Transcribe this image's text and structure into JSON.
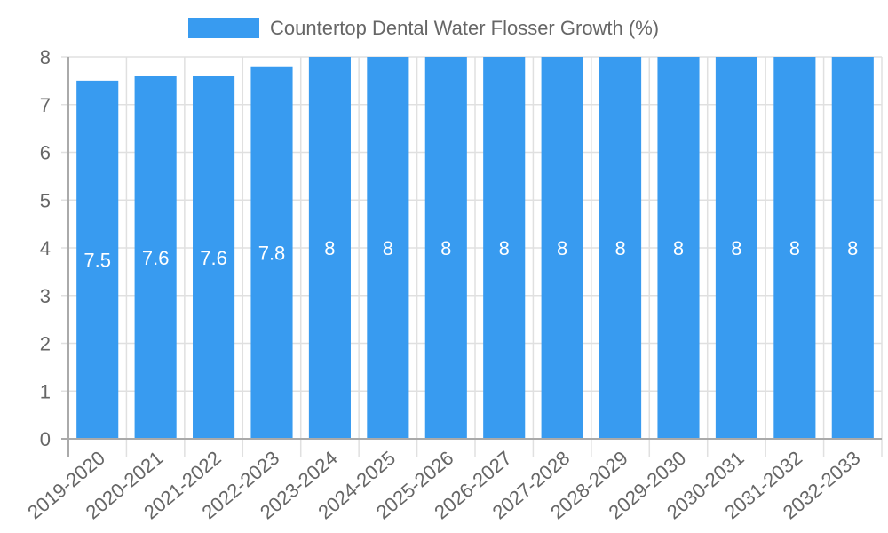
{
  "chart_data": {
    "type": "bar",
    "title": "",
    "legend": [
      {
        "label": "Countertop Dental Water Flosser Growth (%)",
        "color": "#389bf0"
      }
    ],
    "legend_position": "top",
    "categories": [
      "2019-2020",
      "2020-2021",
      "2021-2022",
      "2022-2023",
      "2023-2024",
      "2024-2025",
      "2025-2026",
      "2026-2027",
      "2027-2028",
      "2028-2029",
      "2029-2030",
      "2030-2031",
      "2031-2032",
      "2032-2033"
    ],
    "series": [
      {
        "name": "Countertop Dental Water Flosser Growth (%)",
        "values": [
          7.5,
          7.6,
          7.6,
          7.8,
          8,
          8,
          8,
          8,
          8,
          8,
          8,
          8,
          8,
          8
        ],
        "color": "#389bf0"
      }
    ],
    "value_labels": [
      "7.5",
      "7.6",
      "7.6",
      "7.8",
      "8",
      "8",
      "8",
      "8",
      "8",
      "8",
      "8",
      "8",
      "8",
      "8"
    ],
    "xlabel": "",
    "ylabel": "",
    "ylim": [
      0,
      8
    ],
    "yticks": [
      0,
      1,
      2,
      3,
      4,
      5,
      6,
      7,
      8
    ],
    "grid": true
  },
  "colors": {
    "bar": "#389bf0",
    "grid": "#e0e0e0",
    "axis": "#aaaaaa",
    "text": "#666666"
  }
}
